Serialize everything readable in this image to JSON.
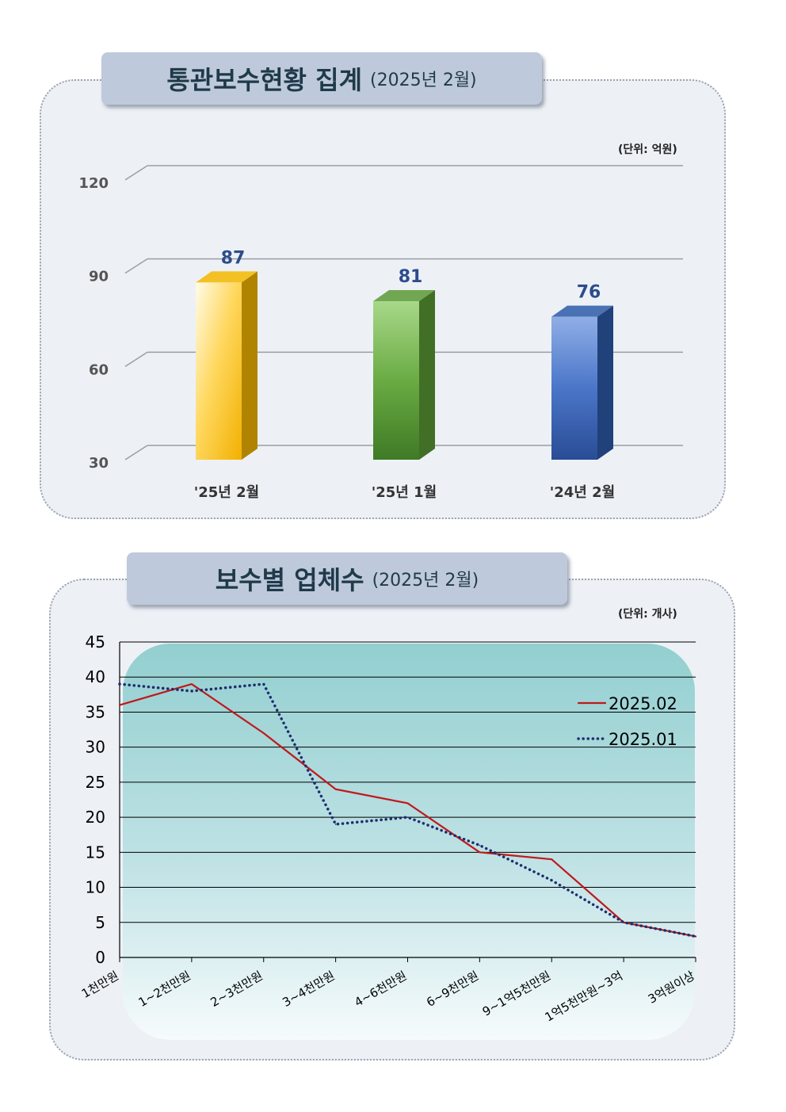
{
  "charts": {
    "summary": {
      "title": "통관보수현황 집계",
      "subtitle": "(2025년 2월)",
      "unit": "(단위: 억원)"
    },
    "by_company": {
      "title": "보수별 업체수",
      "subtitle": "(2025년 2월)",
      "unit": "(단위: 개사)"
    }
  },
  "chart_data": [
    {
      "type": "bar",
      "title": "통관보수현황 집계",
      "subtitle": "(2025년 2월)",
      "unit": "(단위: 억원)",
      "categories": [
        "'25년 2월",
        "'25년 1월",
        "'24년 2월"
      ],
      "values": [
        87,
        81,
        76
      ],
      "value_labels": [
        "87",
        "81",
        "76"
      ],
      "yticks": [
        "30",
        "60",
        "90",
        "120"
      ],
      "ylim": [
        30,
        120
      ],
      "grid": true,
      "style": "3d",
      "colors": [
        "#f5b800",
        "#5a9a35",
        "#2d5aa8"
      ],
      "label_color": "#2c4c8c"
    },
    {
      "type": "line",
      "title": "보수별 업체수",
      "subtitle": "(2025년 2월)",
      "unit": "(단위: 개사)",
      "categories": [
        "1천만원",
        "1~2천만원",
        "2~3천만원",
        "3~4천만원",
        "4~6천만원",
        "6~9천만원",
        "9~1억5천만원",
        "1억5천만원~3억",
        "3억원이상"
      ],
      "series": [
        {
          "name": "2025.02",
          "values": [
            36,
            39,
            32,
            24,
            22,
            15,
            14,
            5,
            3
          ],
          "color": "#c0191c",
          "style": "solid"
        },
        {
          "name": "2025.01",
          "values": [
            39,
            38,
            39,
            19,
            20,
            16,
            11,
            5,
            3
          ],
          "color": "#1f2d6e",
          "style": "dotted"
        }
      ],
      "yticks": [
        "0",
        "5",
        "10",
        "15",
        "20",
        "25",
        "30",
        "35",
        "40",
        "45"
      ],
      "ylim": [
        0,
        45
      ],
      "grid": true,
      "legend": "right"
    }
  ]
}
